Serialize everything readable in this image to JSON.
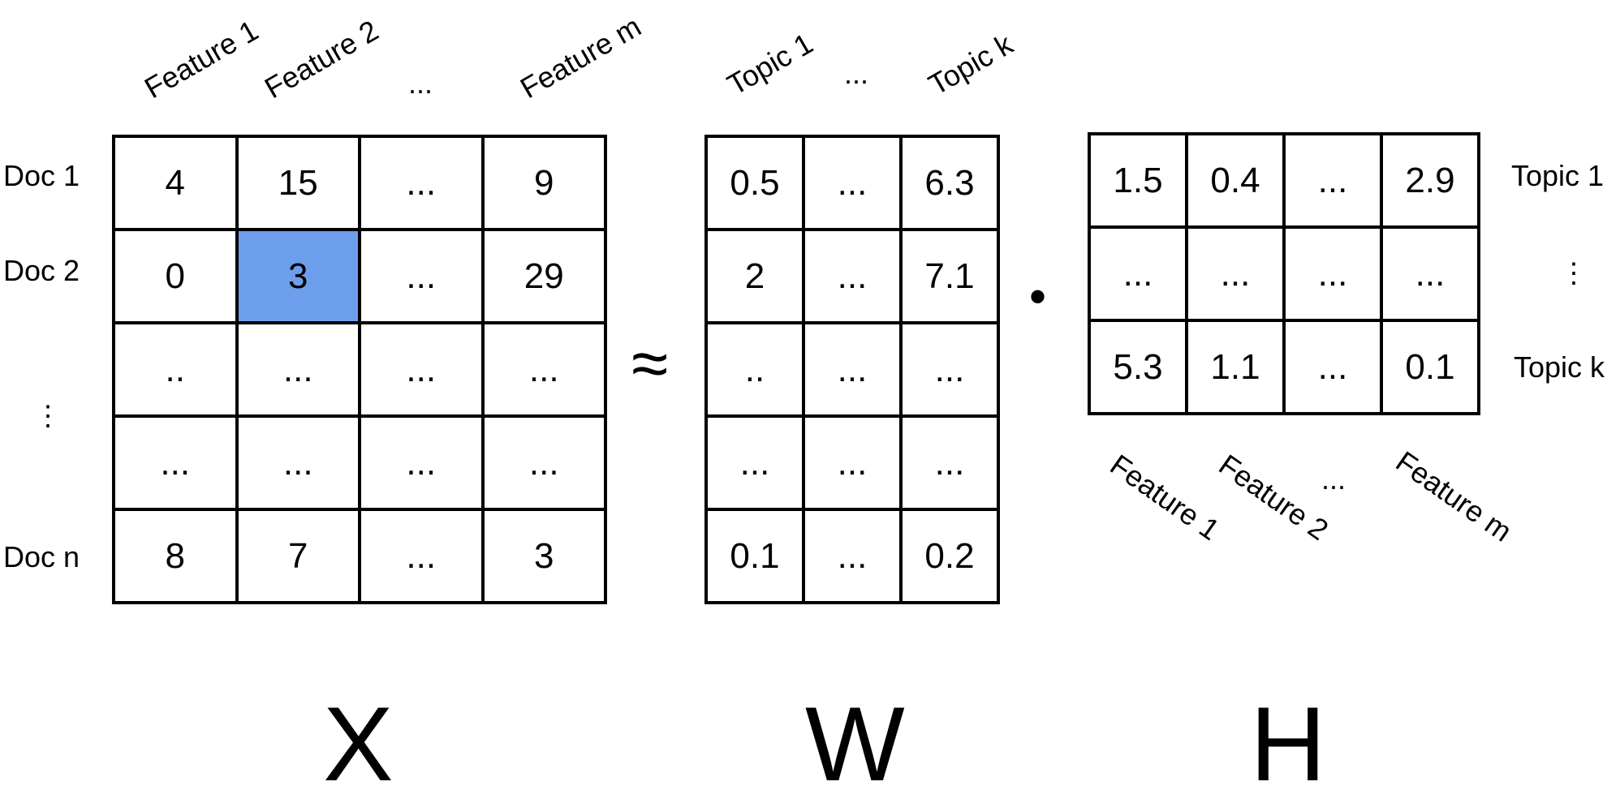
{
  "x_block": {
    "col_labels": [
      "Feature 1",
      "Feature 2",
      "...",
      "Feature m"
    ],
    "row_labels": [
      "Doc 1",
      "Doc 2",
      "⋮",
      "Doc n"
    ],
    "rows": [
      [
        "4",
        "15",
        "...",
        "9"
      ],
      [
        "0",
        "3",
        "...",
        "29"
      ],
      [
        "..",
        "...",
        "...",
        "..."
      ],
      [
        "...",
        "...",
        "...",
        "..."
      ],
      [
        "8",
        "7",
        "...",
        "3"
      ]
    ],
    "highlight_color": "#6d9eeb",
    "name": "X"
  },
  "approx_symbol": "≈",
  "w_block": {
    "col_labels": [
      "Topic 1",
      "...",
      "Topic k"
    ],
    "rows": [
      [
        "0.5",
        "...",
        "6.3"
      ],
      [
        "2",
        "...",
        "7.1"
      ],
      [
        "..",
        "...",
        "..."
      ],
      [
        "...",
        "...",
        "..."
      ],
      [
        "0.1",
        "...",
        "0.2"
      ]
    ],
    "name": "W"
  },
  "dot_symbol": "•",
  "h_block": {
    "row_labels": [
      "Topic 1",
      "⋮",
      "Topic k"
    ],
    "col_labels": [
      "Feature 1",
      "Feature 2",
      "...",
      "Feature m"
    ],
    "rows": [
      [
        "1.5",
        "0.4",
        "...",
        "2.9"
      ],
      [
        "...",
        "...",
        "...",
        "..."
      ],
      [
        "5.3",
        "1.1",
        "...",
        "0.1"
      ]
    ],
    "name": "H"
  }
}
